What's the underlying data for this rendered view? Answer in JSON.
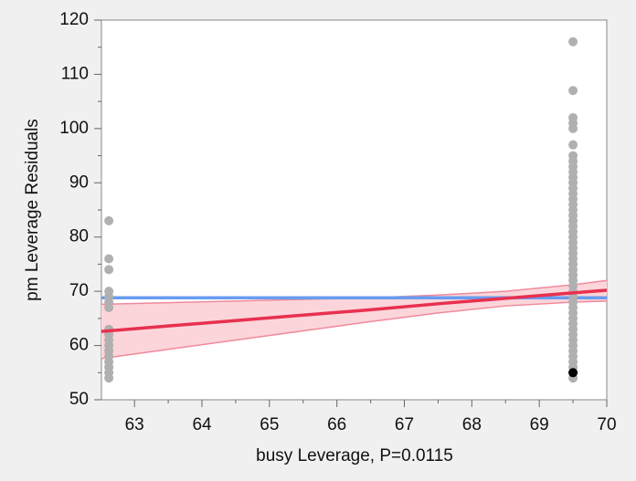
{
  "chart_data": {
    "type": "scatter",
    "xlabel": "busy Leverage, P=0.0115",
    "ylabel": "pm Leverage Residuals",
    "xlim": [
      62.51,
      70
    ],
    "ylim": [
      50,
      120
    ],
    "xticks": [
      63,
      64,
      65,
      66,
      67,
      68,
      69,
      70
    ],
    "yticks": [
      50,
      60,
      70,
      80,
      90,
      100,
      110,
      120
    ],
    "xminorticks": [
      63.5,
      64.5,
      65.5,
      66.5,
      67.5,
      68.5,
      69.5
    ],
    "yminorticks": [
      55,
      65,
      75,
      85,
      95,
      105,
      115
    ],
    "series": [
      {
        "color": "#b0b0b0",
        "x": [
          62.62,
          62.62,
          62.62,
          62.62,
          62.62,
          62.62,
          62.62,
          62.62,
          62.62,
          62.62,
          62.62,
          62.62,
          62.62,
          62.62,
          62.62,
          62.62,
          62.62,
          69.5,
          69.5,
          69.5,
          69.5,
          69.5,
          69.5,
          69.5,
          69.5,
          69.5,
          69.5,
          69.5,
          69.5,
          69.5,
          69.5,
          69.5,
          69.5,
          69.5,
          69.5,
          69.5,
          69.5,
          69.5,
          69.5,
          69.5,
          69.5,
          69.5,
          69.5,
          69.5,
          69.5,
          69.5,
          69.5,
          69.5,
          69.5,
          69.5,
          69.5,
          69.5,
          69.5,
          69.5,
          69.5,
          69.5,
          69.5,
          69.5,
          69.5,
          69.5,
          69.5,
          69.5,
          69.5,
          69.5,
          69.5
        ],
        "values": [
          83,
          76,
          74,
          70,
          69,
          68,
          67,
          63,
          62,
          61,
          60,
          59,
          58,
          57,
          56,
          55,
          54,
          116,
          107,
          102,
          101,
          100,
          97,
          95,
          94,
          93,
          92,
          91,
          90,
          89,
          88,
          87,
          86,
          85,
          84,
          83,
          82,
          81,
          80,
          79,
          78,
          77,
          76,
          75,
          74,
          73,
          72,
          71,
          70,
          69,
          68,
          67,
          66,
          65,
          64,
          63,
          62,
          61,
          60,
          59,
          58,
          57,
          56,
          55,
          54
        ]
      },
      {
        "color": "#000000",
        "x": [
          69.5
        ],
        "values": [
          55
        ]
      }
    ],
    "mean_line": {
      "color": "#6a9cf0",
      "x": [
        62.51,
        70
      ],
      "values": [
        68.8,
        68.8
      ]
    },
    "fit_line": {
      "color": "#e8304f",
      "x": [
        62.51,
        63.5,
        64.5,
        65.5,
        66.5,
        67.5,
        68.5,
        69.5,
        70
      ],
      "values": [
        62.6,
        63.6,
        64.6,
        65.6,
        66.6,
        67.7,
        68.7,
        69.7,
        70.2
      ]
    },
    "confidence_band": {
      "color": "#fbd5da",
      "edge_color": "#f08a9a",
      "x": [
        62.51,
        63.5,
        64.5,
        65.5,
        66.5,
        67.5,
        68.5,
        69.5,
        70
      ],
      "lower": [
        57.6,
        59.3,
        61.0,
        62.7,
        64.4,
        66.0,
        67.3,
        68.0,
        68.2
      ],
      "upper": [
        67.6,
        67.9,
        68.2,
        68.5,
        68.8,
        69.3,
        70.0,
        71.2,
        72.0
      ]
    }
  }
}
